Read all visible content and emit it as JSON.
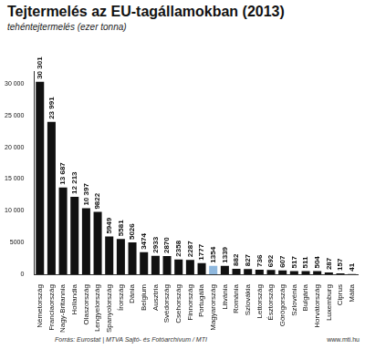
{
  "chart_data": {
    "type": "bar",
    "title": "Tejtermelés az EU-tagállamokban (2013)",
    "subtitle": "tehéntejtermelés (ezer tonna)",
    "source": "Forrás: Eurostat | MTVA Sajtó- és Fotóarchívum / MTI",
    "annotations": [
      "www.mti.hu"
    ],
    "categories": [
      "Németország",
      "Franciaország",
      "Nagy-Britannia",
      "Hollandia",
      "Olaszország",
      "Lengyelország",
      "Spanyolország",
      "Írország",
      "Dánia",
      "Belgium",
      "Ausztria",
      "Svédország",
      "Csehország",
      "Finnország",
      "Portugália",
      "Magyarország",
      "Litvánia",
      "Románia",
      "Szlovákia",
      "Lettország",
      "Észtország",
      "Görögország",
      "Szlovénia",
      "Bulgária",
      "Horvátország",
      "Luxemburg",
      "Ciprus",
      "Málta"
    ],
    "values": [
      30301,
      23991,
      13687,
      12213,
      10397,
      9822,
      5949,
      5581,
      5026,
      3474,
      2933,
      2870,
      2358,
      2287,
      1777,
      1354,
      1339,
      882,
      827,
      736,
      692,
      607,
      517,
      511,
      504,
      287,
      157,
      41
    ],
    "value_labels": [
      "30 301",
      "23 991",
      "13 687",
      "12 213",
      "10 397",
      "9822",
      "5949",
      "5581",
      "5026",
      "3474",
      "2933",
      "2870",
      "2358",
      "2287",
      "1777",
      "1354",
      "1339",
      "882",
      "827",
      "736",
      "692",
      "607",
      "517",
      "511",
      "504",
      "287",
      "157",
      "41"
    ],
    "colors": [
      "#111111",
      "#111111",
      "#111111",
      "#111111",
      "#111111",
      "#111111",
      "#111111",
      "#111111",
      "#111111",
      "#111111",
      "#111111",
      "#111111",
      "#111111",
      "#111111",
      "#111111",
      "#8fb8de",
      "#111111",
      "#111111",
      "#111111",
      "#111111",
      "#111111",
      "#111111",
      "#111111",
      "#111111",
      "#111111",
      "#111111",
      "#111111",
      "#111111"
    ],
    "ylim": [
      0,
      32000
    ],
    "yticks": [
      0,
      5000,
      {
        "value": 10000,
        "label": "10 000"
      },
      {
        "value": 15000,
        "label": "15 000"
      },
      {
        "value": 20000,
        "label": "20 000"
      },
      {
        "value": 25000,
        "label": "25 000"
      },
      {
        "value": 30000,
        "label": "30 000"
      }
    ],
    "grid": false,
    "data_labels": true
  }
}
